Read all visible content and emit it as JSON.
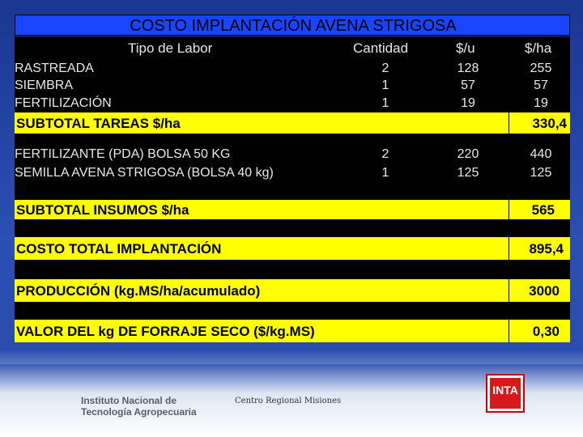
{
  "title": "COSTO IMPLANTACIÓN AVENA STRIGOSA",
  "headers": {
    "labor": "Tipo de Labor",
    "cantidad": "Cantidad",
    "unit": "$/u",
    "ha": "$/ha"
  },
  "tareas": [
    {
      "label": "RASTREADA",
      "cantidad": "2",
      "unit": "128",
      "ha": "255"
    },
    {
      "label": "SIEMBRA",
      "cantidad": "1",
      "unit": "57",
      "ha": "57"
    },
    {
      "label": "FERTILIZACIÓN",
      "cantidad": "1",
      "unit": "19",
      "ha": "19"
    }
  ],
  "subtotal_tareas": {
    "label": "SUBTOTAL TAREAS $/ha",
    "value": "330,4"
  },
  "insumos": [
    {
      "label": "FERTILIZANTE (PDA) BOLSA 50 KG",
      "cantidad": "2",
      "unit": "220",
      "ha": "440"
    },
    {
      "label": "SEMILLA AVENA STRIGOSA (BOLSA 40 kg)",
      "cantidad": "1",
      "unit": "125",
      "ha": "125"
    }
  ],
  "subtotal_insumos": {
    "label": "SUBTOTAL INSUMOS $/ha",
    "value": "565"
  },
  "costo_total": {
    "label": "COSTO TOTAL IMPLANTACIÓN",
    "value": "895,4"
  },
  "produccion": {
    "label": "PRODUCCIÓN (kg.MS/ha/acumulado)",
    "value": "3000"
  },
  "valor": {
    "label": "VALOR DEL kg DE FORRAJE SECO ($/kg.MS)",
    "value": "0,30"
  },
  "footer": {
    "institute_line1": "Instituto Nacional de",
    "institute_line2": "Tecnología Agropecuaria",
    "regional": "Centro Regional Misiones",
    "logo": "INTA"
  }
}
